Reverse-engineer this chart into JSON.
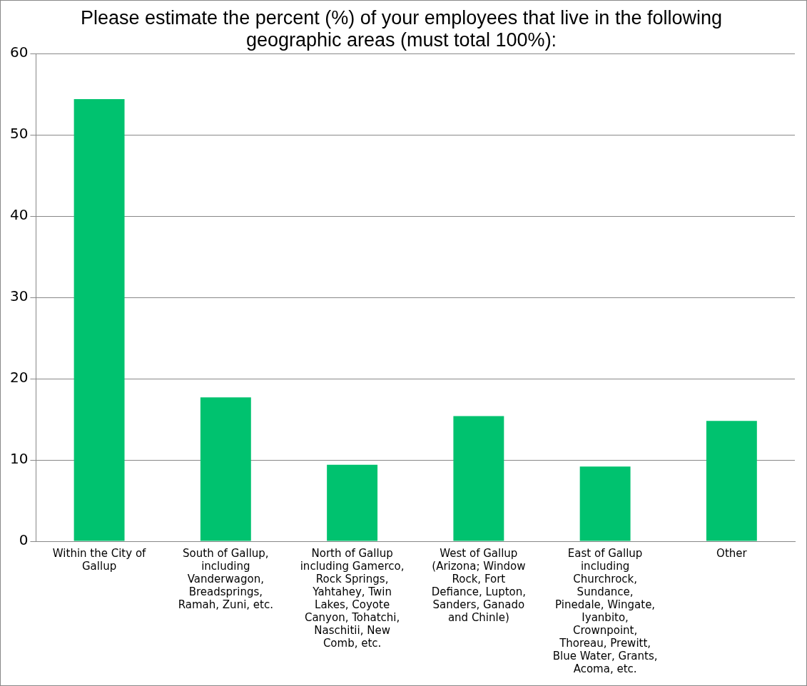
{
  "chart_data": {
    "type": "bar",
    "title": "Please estimate the percent (%) of your employees that live in the following geographic areas (must total 100%):",
    "categories": [
      "Within the City of Gallup",
      "South of Gallup, including Vanderwagon, Breadsprings, Ramah, Zuni, etc.",
      "North of Gallup including Gamerco, Rock Springs, Yahtahey, Twin Lakes, Coyote Canyon, Tohatchi, Naschitii, New Comb, etc.",
      "West of Gallup (Arizona; Window Rock, Fort Defiance, Lupton, Sanders, Ganado and Chinle)",
      "East of Gallup including Churchrock, Sundance, Pinedale, Wingate, Iyanbito, Crownpoint, Thoreau, Prewitt, Blue Water, Grants, Acoma, etc.",
      "Other"
    ],
    "values": [
      54.4,
      17.7,
      9.4,
      15.4,
      9.2,
      14.8
    ],
    "color": "#00c26f",
    "ylim": [
      0,
      60
    ],
    "yticks": [
      0,
      10,
      20,
      30,
      40,
      50,
      60
    ],
    "grid": "y",
    "legend": false
  }
}
